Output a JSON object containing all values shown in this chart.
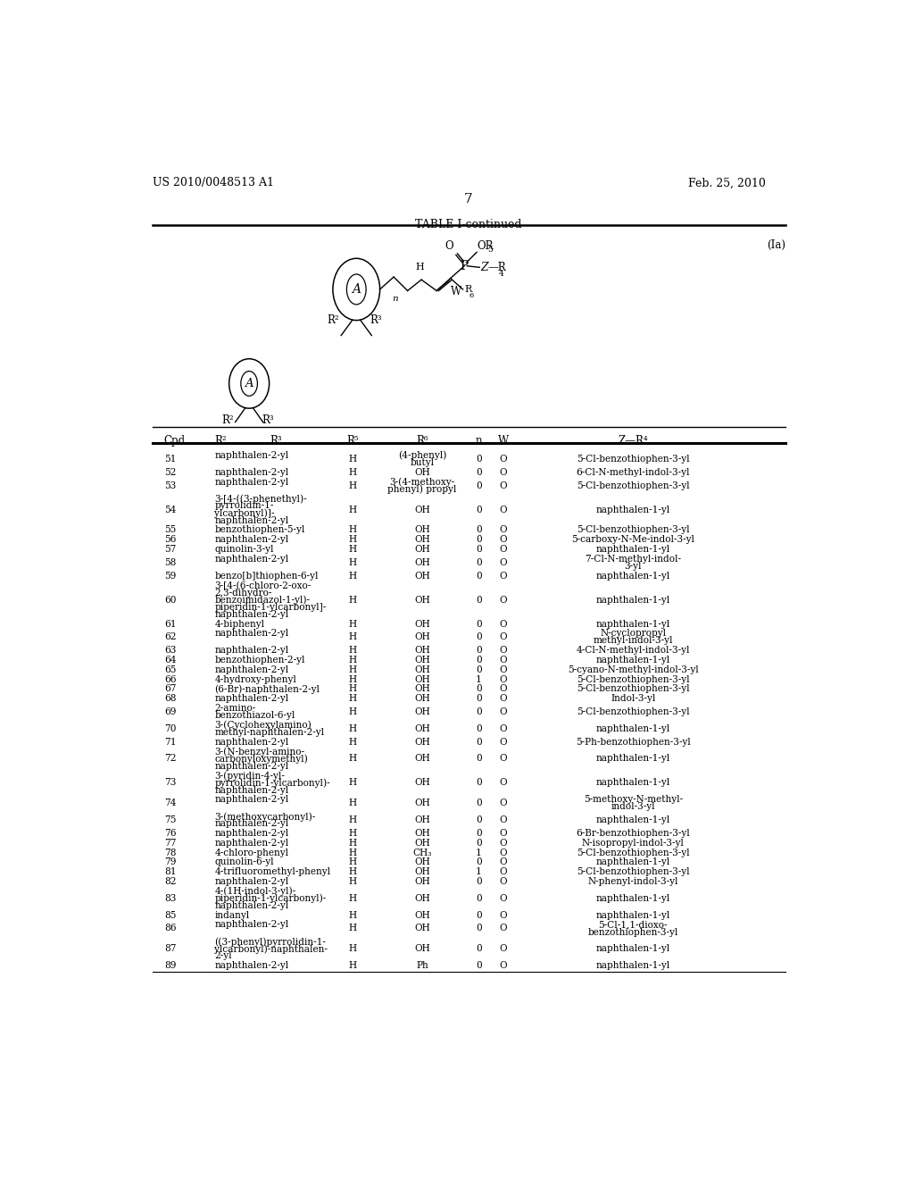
{
  "patent_number": "US 2010/0048513 A1",
  "patent_date": "Feb. 25, 2010",
  "page_number": "7",
  "table_title": "TABLE I-continued",
  "formula_label": "(Ia)",
  "rows": [
    [
      "51",
      "naphthalen-2-yl",
      "H",
      "(4-phenyl)\nbutyl",
      "0",
      "O",
      "5-Cl-benzothiophen-3-yl"
    ],
    [
      "52",
      "naphthalen-2-yl",
      "H",
      "OH",
      "0",
      "O",
      "6-Cl-N-methyl-indol-3-yl"
    ],
    [
      "53",
      "naphthalen-2-yl",
      "H",
      "3-(4-methoxy-\nphenyl) propyl",
      "0",
      "O",
      "5-Cl-benzothiophen-3-yl"
    ],
    [
      "54",
      "3-[4-((3-phenethyl)-\npyrrolidin-1-\nylcarbonyl)]-\nnaphthalen-2-yl",
      "H",
      "OH",
      "0",
      "O",
      "naphthalen-1-yl"
    ],
    [
      "55",
      "benzothiophen-5-yl",
      "H",
      "OH",
      "0",
      "O",
      "5-Cl-benzothiophen-3-yl"
    ],
    [
      "56",
      "naphthalen-2-yl",
      "H",
      "OH",
      "0",
      "O",
      "5-carboxy-N-Me-indol-3-yl"
    ],
    [
      "57",
      "quinolin-3-yl",
      "H",
      "OH",
      "0",
      "O",
      "naphthalen-1-yl"
    ],
    [
      "58",
      "naphthalen-2-yl",
      "H",
      "OH",
      "0",
      "O",
      "7-Cl-N-methyl-indol-\n3-yl"
    ],
    [
      "59",
      "benzo[b]thiophen-6-yl",
      "H",
      "OH",
      "0",
      "O",
      "naphthalen-1-yl"
    ],
    [
      "60",
      "3-[4-(6-chloro-2-oxo-\n2,3-dihydro-\nbenzoimidazol-1-yl)-\npiperidin-1-ylcarbonyl]-\nnaphthalen-2-yl",
      "H",
      "OH",
      "0",
      "O",
      "naphthalen-1-yl"
    ],
    [
      "61",
      "4-biphenyl",
      "H",
      "OH",
      "0",
      "O",
      "naphthalen-1-yl"
    ],
    [
      "62",
      "naphthalen-2-yl",
      "H",
      "OH",
      "0",
      "O",
      "N-cyclopropyl\nmethyl-indol-3-yl"
    ],
    [
      "63",
      "naphthalen-2-yl",
      "H",
      "OH",
      "0",
      "O",
      "4-Cl-N-methyl-indol-3-yl"
    ],
    [
      "64",
      "benzothiophen-2-yl",
      "H",
      "OH",
      "0",
      "O",
      "naphthalen-1-yl"
    ],
    [
      "65",
      "naphthalen-2-yl",
      "H",
      "OH",
      "0",
      "O",
      "5-cyano-N-methyl-indol-3-yl"
    ],
    [
      "66",
      "4-hydroxy-phenyl",
      "H",
      "OH",
      "1",
      "O",
      "5-Cl-benzothiophen-3-yl"
    ],
    [
      "67",
      "(6-Br)-naphthalen-2-yl",
      "H",
      "OH",
      "0",
      "O",
      "5-Cl-benzothiophen-3-yl"
    ],
    [
      "68",
      "naphthalen-2-yl",
      "H",
      "OH",
      "0",
      "O",
      "Indol-3-yl"
    ],
    [
      "69",
      "2-amino-\nbenzothiazol-6-yl",
      "H",
      "OH",
      "0",
      "O",
      "5-Cl-benzothiophen-3-yl"
    ],
    [
      "70",
      "3-(Cyclohexylamino)\nmethyl-naphthalen-2-yl",
      "H",
      "OH",
      "0",
      "O",
      "naphthalen-1-yl"
    ],
    [
      "71",
      "naphthalen-2-yl",
      "H",
      "OH",
      "0",
      "O",
      "5-Ph-benzothiophen-3-yl"
    ],
    [
      "72",
      "3-(N-benzyl-amino-\ncarbonyloxymethyl)\nnaphthalen-2-yl",
      "H",
      "OH",
      "0",
      "O",
      "naphthalen-1-yl"
    ],
    [
      "73",
      "3-(pyridin-4-yl-\npyrrolidin-1-ylcarbonyl)-\nnaphthalen-2-yl",
      "H",
      "OH",
      "0",
      "O",
      "naphthalen-1-yl"
    ],
    [
      "74",
      "naphthalen-2-yl",
      "H",
      "OH",
      "0",
      "O",
      "5-methoxy-N-methyl-\nindol-3-yl"
    ],
    [
      "75",
      "3-(methoxycarbonyl)-\nnaphthalen-2-yl",
      "H",
      "OH",
      "0",
      "O",
      "naphthalen-1-yl"
    ],
    [
      "76",
      "naphthalen-2-yl",
      "H",
      "OH",
      "0",
      "O",
      "6-Br-benzothiophen-3-yl"
    ],
    [
      "77",
      "naphthalen-2-yl",
      "H",
      "OH",
      "0",
      "O",
      "N-isopropyl-indol-3-yl"
    ],
    [
      "78",
      "4-chloro-phenyl",
      "H",
      "CH₃",
      "1",
      "O",
      "5-Cl-benzothiophen-3-yl"
    ],
    [
      "79",
      "quinolin-6-yl",
      "H",
      "OH",
      "0",
      "O",
      "naphthalen-1-yl"
    ],
    [
      "81",
      "4-trifluoromethyl-phenyl",
      "H",
      "OH",
      "1",
      "O",
      "5-Cl-benzothiophen-3-yl"
    ],
    [
      "82",
      "naphthalen-2-yl",
      "H",
      "OH",
      "0",
      "O",
      "N-phenyl-indol-3-yl"
    ],
    [
      "83",
      "4-(1H-indol-3-yl)-\npiperidin-1-ylcarbonyl)-\nnaphthalen-2-yl",
      "H",
      "OH",
      "0",
      "O",
      "naphthalen-1-yl"
    ],
    [
      "85",
      "indanyl",
      "H",
      "OH",
      "0",
      "O",
      "naphthalen-1-yl"
    ],
    [
      "86",
      "naphthalen-2-yl",
      "H",
      "OH",
      "0",
      "O",
      "5-Cl-1,1-dioxo-\nbenzothiophen-3-yl"
    ],
    [
      "87",
      "((3-phenyl)pyrrolidin-1-\nylcarbonyl)-naphthalen-\n2-yl",
      "H",
      "OH",
      "0",
      "O",
      "naphthalen-1-yl"
    ],
    [
      "89",
      "naphthalen-2-yl",
      "H",
      "Ph",
      "0",
      "O",
      "naphthalen-1-yl"
    ]
  ],
  "bg_color": "#ffffff"
}
